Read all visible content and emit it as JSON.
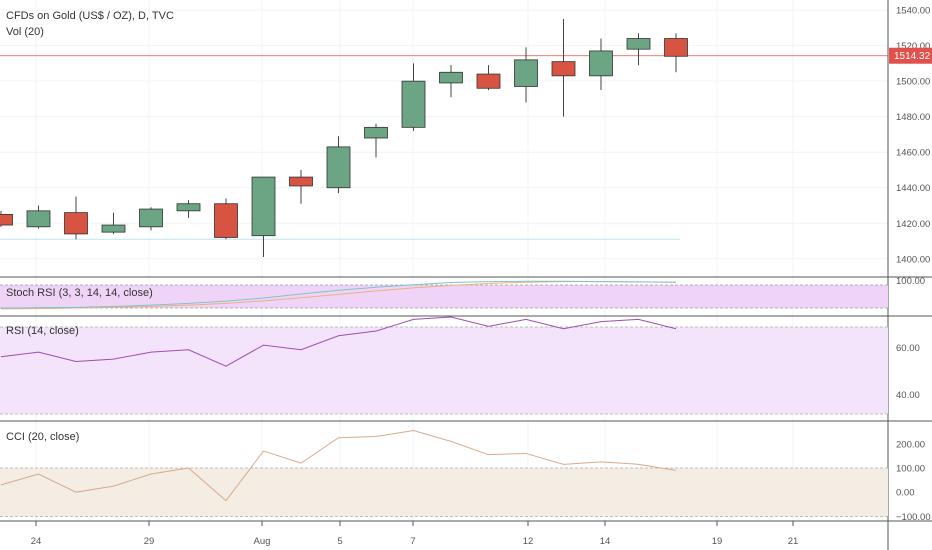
{
  "chart_data": {
    "type": "candlestick",
    "title": "CFDs on Gold (US$ / OZ), D, TVC",
    "subtitle": "Vol (20)",
    "x_labels": [
      "24",
      "29",
      "Aug",
      "5",
      "7",
      "12",
      "14",
      "19",
      "21"
    ],
    "price_axis": {
      "ticks": [
        "1540.00",
        "1520.00",
        "1500.00",
        "1480.00",
        "1460.00",
        "1440.00",
        "1420.00",
        "1400.00"
      ],
      "ylim": [
        1392,
        1544
      ]
    },
    "last_price": "1514.32",
    "candles": [
      {
        "open": 1425,
        "high": 1427,
        "low": 1418,
        "close": 1419
      },
      {
        "open": 1418,
        "high": 1430,
        "low": 1417,
        "close": 1427
      },
      {
        "open": 1426,
        "high": 1435,
        "low": 1411,
        "close": 1414
      },
      {
        "open": 1415,
        "high": 1426,
        "low": 1414,
        "close": 1419
      },
      {
        "open": 1418,
        "high": 1429,
        "low": 1416,
        "close": 1428
      },
      {
        "open": 1427,
        "high": 1433,
        "low": 1423,
        "close": 1431
      },
      {
        "open": 1431,
        "high": 1434,
        "low": 1411,
        "close": 1412
      },
      {
        "open": 1413,
        "high": 1446,
        "low": 1401,
        "close": 1446
      },
      {
        "open": 1446,
        "high": 1450,
        "low": 1431,
        "close": 1441
      },
      {
        "open": 1440,
        "high": 1469,
        "low": 1437,
        "close": 1463
      },
      {
        "open": 1468,
        "high": 1476,
        "low": 1457,
        "close": 1474
      },
      {
        "open": 1474,
        "high": 1510,
        "low": 1472,
        "close": 1500
      },
      {
        "open": 1499,
        "high": 1509,
        "low": 1491,
        "close": 1505
      },
      {
        "open": 1504,
        "high": 1509,
        "low": 1495,
        "close": 1496
      },
      {
        "open": 1497,
        "high": 1519,
        "low": 1488,
        "close": 1512
      },
      {
        "open": 1511,
        "high": 1535,
        "low": 1480,
        "close": 1503
      },
      {
        "open": 1503,
        "high": 1524,
        "low": 1495,
        "close": 1517
      },
      {
        "open": 1518,
        "high": 1527,
        "low": 1509,
        "close": 1524
      },
      {
        "open": 1524,
        "high": 1527,
        "low": 1505,
        "close": 1514
      }
    ],
    "colors": {
      "up": "#6ba583",
      "down": "#d75442",
      "wick": "#444444",
      "last_price": "#e0504c"
    },
    "stoch_rsi": {
      "title": "Stoch RSI (3, 3, 14, 14, close)",
      "axis_label": "100.00",
      "k": [
        12,
        14,
        15,
        18,
        22,
        28,
        35,
        45,
        58,
        70,
        80,
        88,
        95,
        98,
        99,
        99,
        98,
        97,
        96
      ],
      "d": [
        10,
        11,
        13,
        15,
        18,
        22,
        28,
        36,
        46,
        57,
        68,
        78,
        86,
        92,
        96,
        98,
        98,
        97,
        96
      ],
      "ylim": [
        0,
        100
      ]
    },
    "rsi": {
      "title": "RSI (14, close)",
      "ticks": [
        "60.00",
        "40.00"
      ],
      "values": [
        56,
        58,
        54,
        55,
        58,
        59,
        52,
        61,
        59,
        65,
        67,
        72,
        73,
        69,
        72,
        68,
        71,
        72,
        68
      ],
      "ylim": [
        29,
        73
      ]
    },
    "cci": {
      "title": "CCI (20, close)",
      "ticks": [
        "200.00",
        "100.00",
        "0.00",
        "−100.00"
      ],
      "values": [
        30,
        75,
        0,
        25,
        75,
        100,
        -35,
        170,
        120,
        225,
        230,
        255,
        210,
        155,
        160,
        115,
        125,
        115,
        90
      ],
      "ylim": [
        -115,
        290
      ]
    }
  }
}
